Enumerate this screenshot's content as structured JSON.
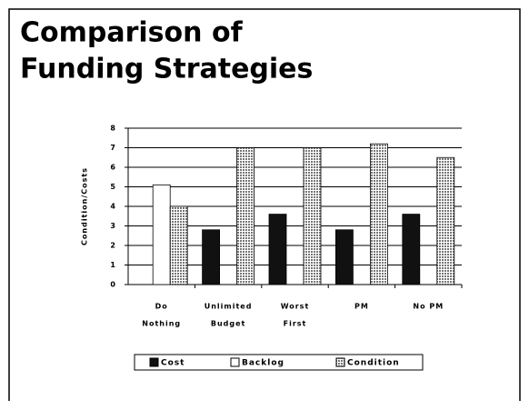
{
  "chart_data": {
    "type": "bar",
    "title": [
      "Comparison of",
      "Funding Strategies"
    ],
    "y_label": "Condition/Costs",
    "categories": [
      [
        "Do",
        "Nothing"
      ],
      [
        "Unlimited",
        "Budget"
      ],
      [
        "Worst",
        "First"
      ],
      [
        "PM"
      ],
      [
        "No PM"
      ]
    ],
    "series": [
      {
        "name": "Cost",
        "color": "#111111",
        "values": [
          0,
          2.8,
          3.6,
          2.8,
          3.6
        ]
      },
      {
        "name": "Backlog",
        "color": "#ffffff",
        "values": [
          5.1,
          0,
          0,
          0,
          0
        ]
      },
      {
        "name": "Condition",
        "color": "#777777",
        "pattern": "crosshatch",
        "values": [
          4.0,
          7.0,
          7.0,
          7.2,
          6.5
        ]
      }
    ],
    "ylim": [
      0,
      8
    ],
    "yticks": [
      0,
      1,
      2,
      3,
      4,
      5,
      6,
      7,
      8
    ],
    "grid": true,
    "legend": "bottom"
  }
}
